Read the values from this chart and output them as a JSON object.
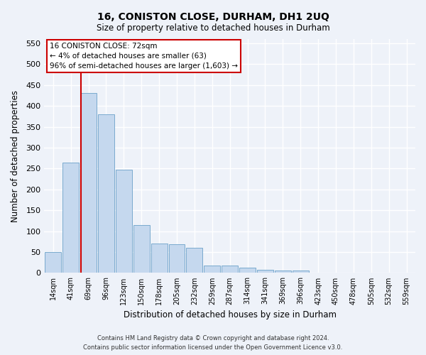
{
  "title": "16, CONISTON CLOSE, DURHAM, DH1 2UQ",
  "subtitle": "Size of property relative to detached houses in Durham",
  "xlabel": "Distribution of detached houses by size in Durham",
  "ylabel": "Number of detached properties",
  "categories": [
    "14sqm",
    "41sqm",
    "69sqm",
    "96sqm",
    "123sqm",
    "150sqm",
    "178sqm",
    "205sqm",
    "232sqm",
    "259sqm",
    "287sqm",
    "314sqm",
    "341sqm",
    "369sqm",
    "396sqm",
    "423sqm",
    "450sqm",
    "478sqm",
    "505sqm",
    "532sqm",
    "559sqm"
  ],
  "values": [
    50,
    265,
    430,
    380,
    248,
    115,
    70,
    68,
    60,
    17,
    17,
    13,
    7,
    5,
    6,
    0,
    0,
    0,
    0,
    0,
    0
  ],
  "bar_color": "#c5d8ee",
  "bar_edge_color": "#7aaace",
  "vline_x_index": 2,
  "annotation_title": "16 CONISTON CLOSE: 72sqm",
  "annotation_line1": "← 4% of detached houses are smaller (63)",
  "annotation_line2": "96% of semi-detached houses are larger (1,603) →",
  "annotation_box_facecolor": "#ffffff",
  "annotation_box_edgecolor": "#cc0000",
  "vline_color": "#cc0000",
  "ylim": [
    0,
    560
  ],
  "yticks": [
    0,
    50,
    100,
    150,
    200,
    250,
    300,
    350,
    400,
    450,
    500,
    550
  ],
  "background_color": "#eef2f9",
  "grid_color": "#ffffff",
  "footer_line1": "Contains HM Land Registry data © Crown copyright and database right 2024.",
  "footer_line2": "Contains public sector information licensed under the Open Government Licence v3.0."
}
